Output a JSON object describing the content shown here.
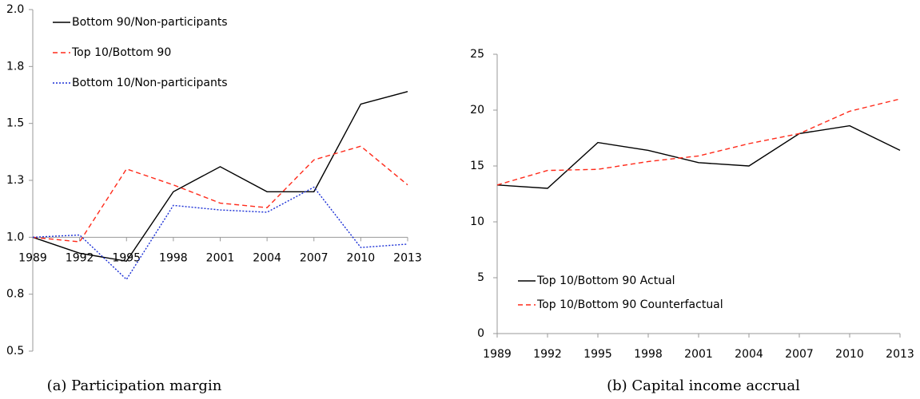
{
  "chart_data": [
    {
      "type": "line",
      "caption": "(a) Participation margin",
      "categories": [
        "1989",
        "1992",
        "1995",
        "1998",
        "2001",
        "2004",
        "2007",
        "2010",
        "2013"
      ],
      "ylim": [
        0.5,
        2.0
      ],
      "yticks": [
        {
          "value": 0.5,
          "label": "0.5"
        },
        {
          "value": 0.75,
          "label": "0.8"
        },
        {
          "value": 1.0,
          "label": "1.0"
        },
        {
          "value": 1.25,
          "label": "1.3"
        },
        {
          "value": 1.5,
          "label": "1.5"
        },
        {
          "value": 1.75,
          "label": "1.8"
        },
        {
          "value": 2.0,
          "label": "2.0"
        }
      ],
      "x_axis_at": 1.0,
      "legend": "upper left",
      "series": [
        {
          "name": "Bottom 90/Non-participants",
          "color": "#000000",
          "dash": "solid",
          "values": [
            1.0,
            0.93,
            0.895,
            1.2,
            1.31,
            1.2,
            1.2,
            1.585,
            1.64
          ]
        },
        {
          "name": "Top 10/Bottom 90",
          "color": "#ff2a1a",
          "dash": "dashed",
          "values": [
            1.0,
            0.98,
            1.3,
            1.23,
            1.15,
            1.13,
            1.34,
            1.4,
            1.23
          ]
        },
        {
          "name": "Bottom 10/Non-participants",
          "color": "#1a2fd6",
          "dash": "dotted",
          "values": [
            1.0,
            1.01,
            0.815,
            1.14,
            1.12,
            1.11,
            1.22,
            0.955,
            0.97
          ]
        }
      ]
    },
    {
      "type": "line",
      "caption": "(b) Capital income accrual",
      "categories": [
        "1989",
        "1992",
        "1995",
        "1998",
        "2001",
        "2004",
        "2007",
        "2010",
        "2013"
      ],
      "ylim": [
        0,
        25
      ],
      "yticks": [
        0,
        5,
        10,
        15,
        20,
        25
      ],
      "x_axis_at": 0,
      "legend": "lower left",
      "series": [
        {
          "name": "Top 10/Bottom 90 Actual",
          "color": "#000000",
          "dash": "solid",
          "values": [
            13.3,
            13.0,
            17.1,
            16.4,
            15.3,
            15.0,
            17.9,
            18.6,
            16.4
          ]
        },
        {
          "name": "Top 10/Bottom 90 Counterfactual",
          "color": "#ff2a1a",
          "dash": "dashed",
          "values": [
            13.3,
            14.6,
            14.7,
            15.4,
            15.9,
            17.0,
            17.9,
            19.9,
            21.0
          ]
        }
      ]
    }
  ]
}
